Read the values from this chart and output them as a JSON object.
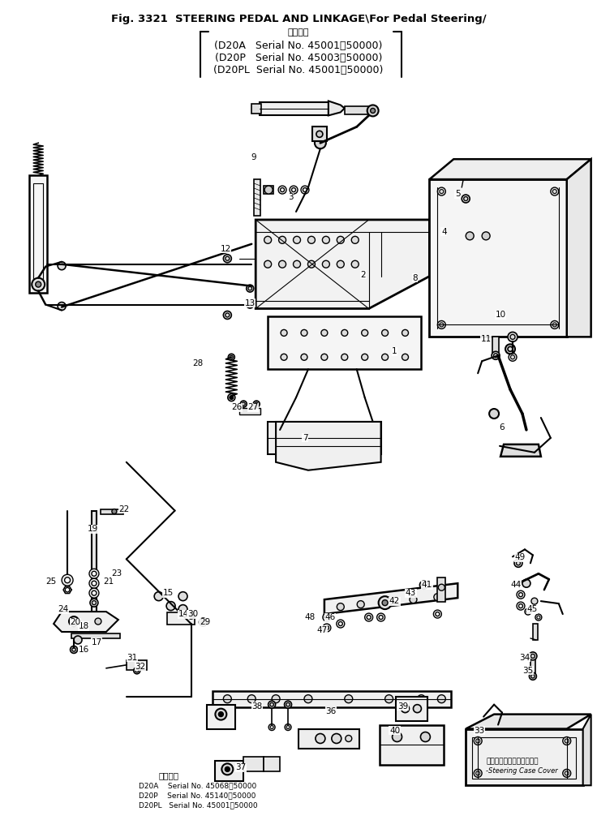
{
  "title_line1": "Fig. 3321  STEERING PEDAL AND LINKAGE\\For Pedal Steering/",
  "title_line2": "適用号機",
  "title_line3": "(D20A   Serial No. 45001～50000)",
  "title_line4": "(D20P   Serial No. 45003～50000)",
  "title_line5": "(D20PL  Serial No. 45001～50000)",
  "bottom_title": "適用号機",
  "bottom_d20a": "D20A    Serial No. 45068～50000",
  "bottom_d20p": "D20P    Serial No. 45140～50000",
  "bottom_d20pl": "D20PL   Serial No. 45001～50000",
  "steering_label1": "ステアリングケースカバー",
  "steering_label2": "-Steering Case Cover",
  "bg_color": "#ffffff",
  "lc": "#000000",
  "figsize": [
    7.36,
    10.27
  ],
  "dpi": 100
}
